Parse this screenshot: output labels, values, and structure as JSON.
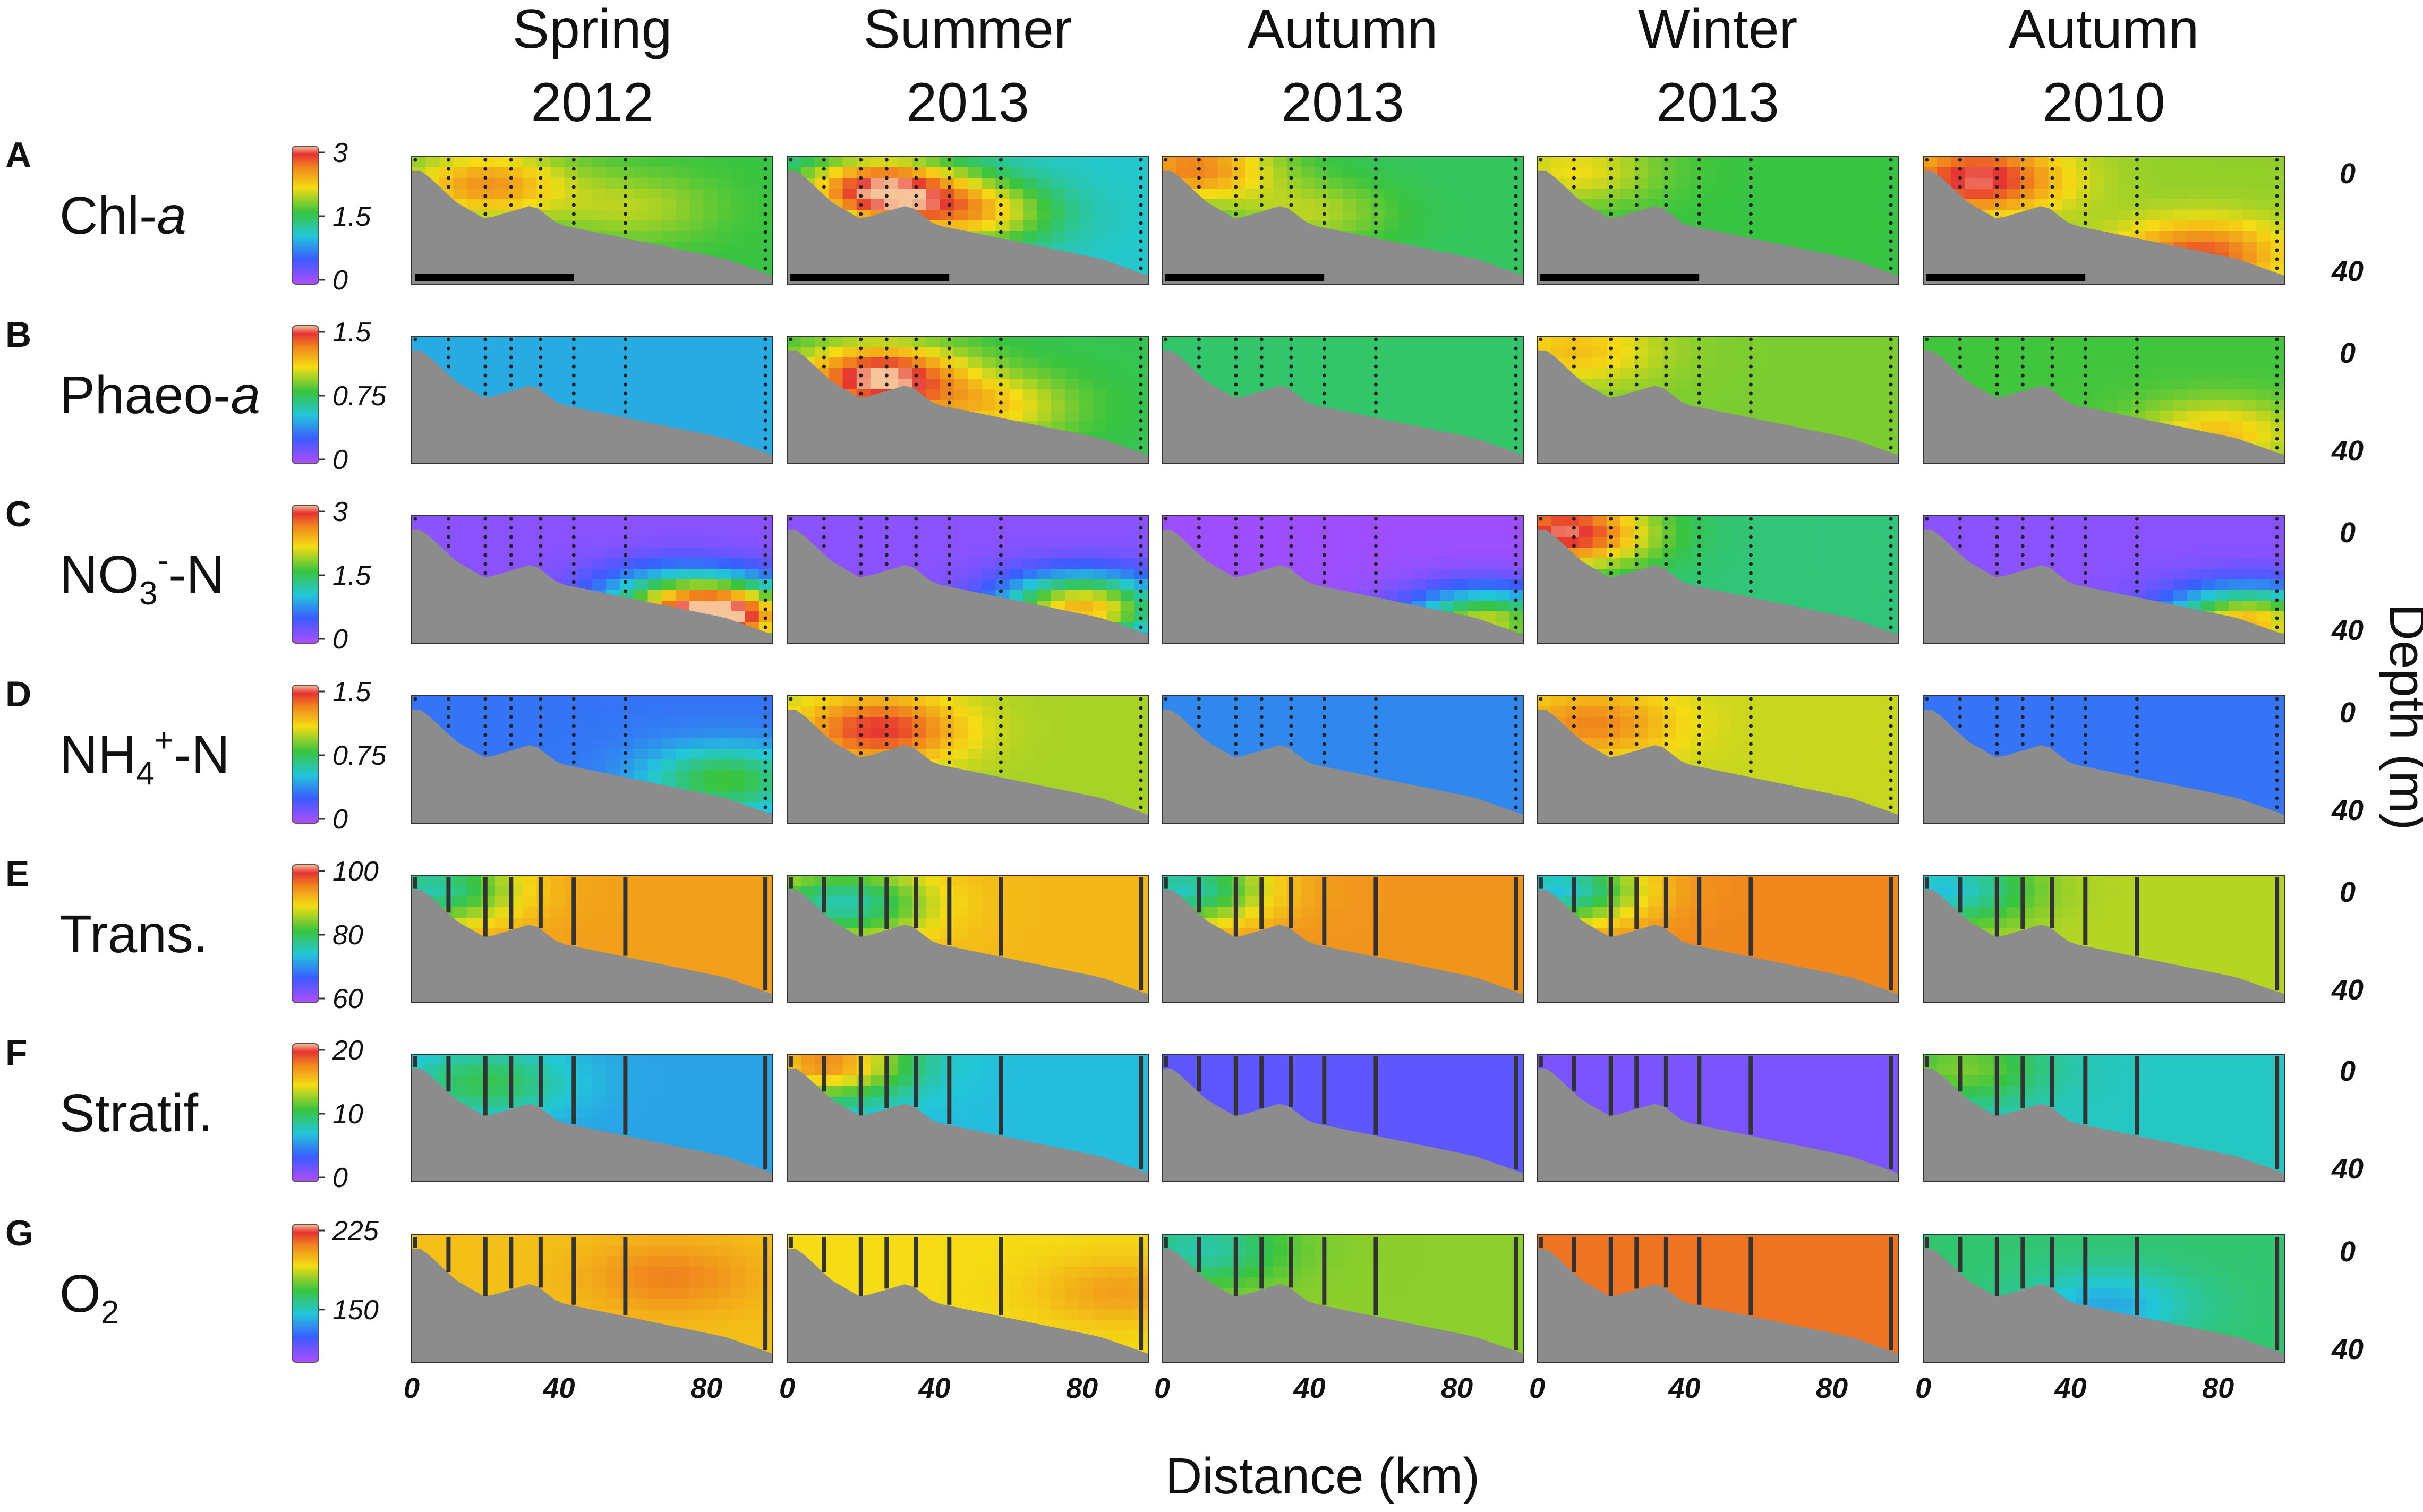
{
  "chart_data": {
    "type": "heatmap",
    "title": "",
    "xlabel": "Distance (km)",
    "ylabel": "Depth (m)",
    "x_ticks": [
      "0",
      "40",
      "80"
    ],
    "y_ticks": [
      "0",
      "40"
    ],
    "xlim": [
      0,
      98
    ],
    "ylim": [
      0,
      45
    ],
    "columns": [
      {
        "line1": "Spring",
        "line2": "2012"
      },
      {
        "line1": "Summer",
        "line2": "2013"
      },
      {
        "line1": "Autumn",
        "line2": "2013"
      },
      {
        "line1": "Winter",
        "line2": "2013"
      },
      {
        "line1": "Autumn",
        "line2": "2010"
      }
    ],
    "panels": [
      {
        "letter": "A",
        "name": "Chl-",
        "name_italic": "a",
        "sub": "",
        "sup": "",
        "suffix": "",
        "colorbar_ticks": [
          "3",
          "1.5",
          "0"
        ],
        "colorbar_range": [
          0,
          3.3
        ],
        "samples": "dots",
        "fields": [
          {
            "base": 1.7,
            "blobs": [
              {
                "x": 20,
                "z": 10,
                "v": 1.0
              },
              {
                "x": 60,
                "z": 18,
                "v": 0.4
              }
            ]
          },
          {
            "base": 1.2,
            "blobs": [
              {
                "x": 25,
                "z": 12,
                "v": 2.0
              },
              {
                "x": 50,
                "z": 20,
                "v": 1.2
              }
            ]
          },
          {
            "base": 1.6,
            "blobs": [
              {
                "x": 8,
                "z": 4,
                "v": 1.2
              },
              {
                "x": 40,
                "z": 20,
                "v": 0.5
              }
            ]
          },
          {
            "base": 1.7,
            "blobs": [
              {
                "x": 10,
                "z": 5,
                "v": 0.6
              }
            ]
          },
          {
            "base": 2.0,
            "blobs": [
              {
                "x": 15,
                "z": 8,
                "v": 1.2
              },
              {
                "x": 75,
                "z": 35,
                "v": 1.0
              }
            ]
          }
        ]
      },
      {
        "letter": "B",
        "name": "Phaeo-",
        "name_italic": "a",
        "sub": "",
        "sup": "",
        "suffix": "",
        "colorbar_ticks": [
          "1.5",
          "0.75",
          "0"
        ],
        "colorbar_range": [
          0,
          1.8
        ],
        "samples": "dots",
        "fields": [
          {
            "base": 0.55,
            "blobs": []
          },
          {
            "base": 0.9,
            "blobs": [
              {
                "x": 25,
                "z": 15,
                "v": 0.9
              },
              {
                "x": 55,
                "z": 25,
                "v": 0.4
              }
            ]
          },
          {
            "base": 0.85,
            "blobs": []
          },
          {
            "base": 1.05,
            "blobs": [
              {
                "x": 10,
                "z": 5,
                "v": 0.3
              }
            ]
          },
          {
            "base": 0.95,
            "blobs": [
              {
                "x": 80,
                "z": 35,
                "v": 0.4
              }
            ]
          }
        ]
      },
      {
        "letter": "C",
        "name": "NO",
        "name_italic": "",
        "sub": "3",
        "sup": "-",
        "suffix": "-N",
        "colorbar_ticks": [
          "3",
          "1.5",
          "0"
        ],
        "colorbar_range": [
          0,
          3.5
        ],
        "samples": "dots",
        "fields": [
          {
            "base": 0.2,
            "blobs": [
              {
                "x": 85,
                "z": 36,
                "v": 3.0
              },
              {
                "x": 70,
                "z": 30,
                "v": 1.2
              }
            ]
          },
          {
            "base": 0.2,
            "blobs": [
              {
                "x": 80,
                "z": 33,
                "v": 2.5
              }
            ]
          },
          {
            "base": 0.1,
            "blobs": [
              {
                "x": 88,
                "z": 38,
                "v": 2.2
              }
            ]
          },
          {
            "base": 1.6,
            "blobs": [
              {
                "x": 8,
                "z": 6,
                "v": 1.8
              }
            ]
          },
          {
            "base": 0.2,
            "blobs": [
              {
                "x": 88,
                "z": 38,
                "v": 2.5
              }
            ]
          }
        ]
      },
      {
        "letter": "D",
        "name": "NH",
        "name_italic": "",
        "sub": "4",
        "sup": "+",
        "suffix": "-N",
        "colorbar_ticks": [
          "1.5",
          "0.75",
          "0"
        ],
        "colorbar_range": [
          0,
          1.6
        ],
        "samples": "dots",
        "fields": [
          {
            "base": 0.35,
            "blobs": [
              {
                "x": 85,
                "z": 30,
                "v": 0.5
              }
            ]
          },
          {
            "base": 1.0,
            "blobs": [
              {
                "x": 25,
                "z": 12,
                "v": 0.5
              }
            ]
          },
          {
            "base": 0.4,
            "blobs": []
          },
          {
            "base": 1.05,
            "blobs": [
              {
                "x": 15,
                "z": 10,
                "v": 0.3
              }
            ]
          },
          {
            "base": 0.35,
            "blobs": []
          }
        ]
      },
      {
        "letter": "E",
        "name": "Trans.",
        "name_italic": "",
        "sub": "",
        "sup": "",
        "suffix": "",
        "colorbar_ticks": [
          "100",
          "80",
          "60"
        ],
        "colorbar_range": [
          50,
          100
        ],
        "samples": "lines",
        "fields": [
          {
            "base": 90,
            "blobs": [
              {
                "x": 5,
                "z": 5,
                "v": -20
              }
            ]
          },
          {
            "base": 88,
            "blobs": [
              {
                "x": 15,
                "z": 10,
                "v": -18
              }
            ]
          },
          {
            "base": 91,
            "blobs": [
              {
                "x": 5,
                "z": 5,
                "v": -22
              }
            ]
          },
          {
            "base": 92,
            "blobs": [
              {
                "x": 5,
                "z": 5,
                "v": -25
              }
            ]
          },
          {
            "base": 82,
            "blobs": [
              {
                "x": 5,
                "z": 5,
                "v": -15
              }
            ]
          }
        ]
      },
      {
        "letter": "F",
        "name": "Stratif.",
        "name_italic": "",
        "sub": "",
        "sup": "",
        "suffix": "",
        "colorbar_ticks": [
          "20",
          "10",
          "0"
        ],
        "colorbar_range": [
          0,
          24
        ],
        "samples": "lines",
        "fields": [
          {
            "base": 7,
            "blobs": [
              {
                "x": 20,
                "z": 10,
                "v": 5
              }
            ]
          },
          {
            "base": 8,
            "blobs": [
              {
                "x": 10,
                "z": 3,
                "v": 12
              }
            ]
          },
          {
            "base": 3,
            "blobs": []
          },
          {
            "base": 2,
            "blobs": []
          },
          {
            "base": 9,
            "blobs": [
              {
                "x": 10,
                "z": 5,
                "v": 5
              }
            ]
          }
        ]
      },
      {
        "letter": "G",
        "name": "O",
        "name_italic": "",
        "sub": "2",
        "sup": "",
        "suffix": "",
        "colorbar_ticks": [
          "225",
          "150"
        ],
        "colorbar_range": [
          110,
          260
        ],
        "samples": "lines",
        "fields": [
          {
            "base": 222,
            "blobs": [
              {
                "x": 70,
                "z": 15,
                "v": 15
              }
            ]
          },
          {
            "base": 215,
            "blobs": [
              {
                "x": 90,
                "z": 20,
                "v": 15
              }
            ]
          },
          {
            "base": 200,
            "blobs": [
              {
                "x": 10,
                "z": 5,
                "v": -30
              }
            ]
          },
          {
            "base": 240,
            "blobs": []
          },
          {
            "base": 180,
            "blobs": [
              {
                "x": 50,
                "z": 25,
                "v": -25
              }
            ]
          }
        ]
      }
    ]
  }
}
